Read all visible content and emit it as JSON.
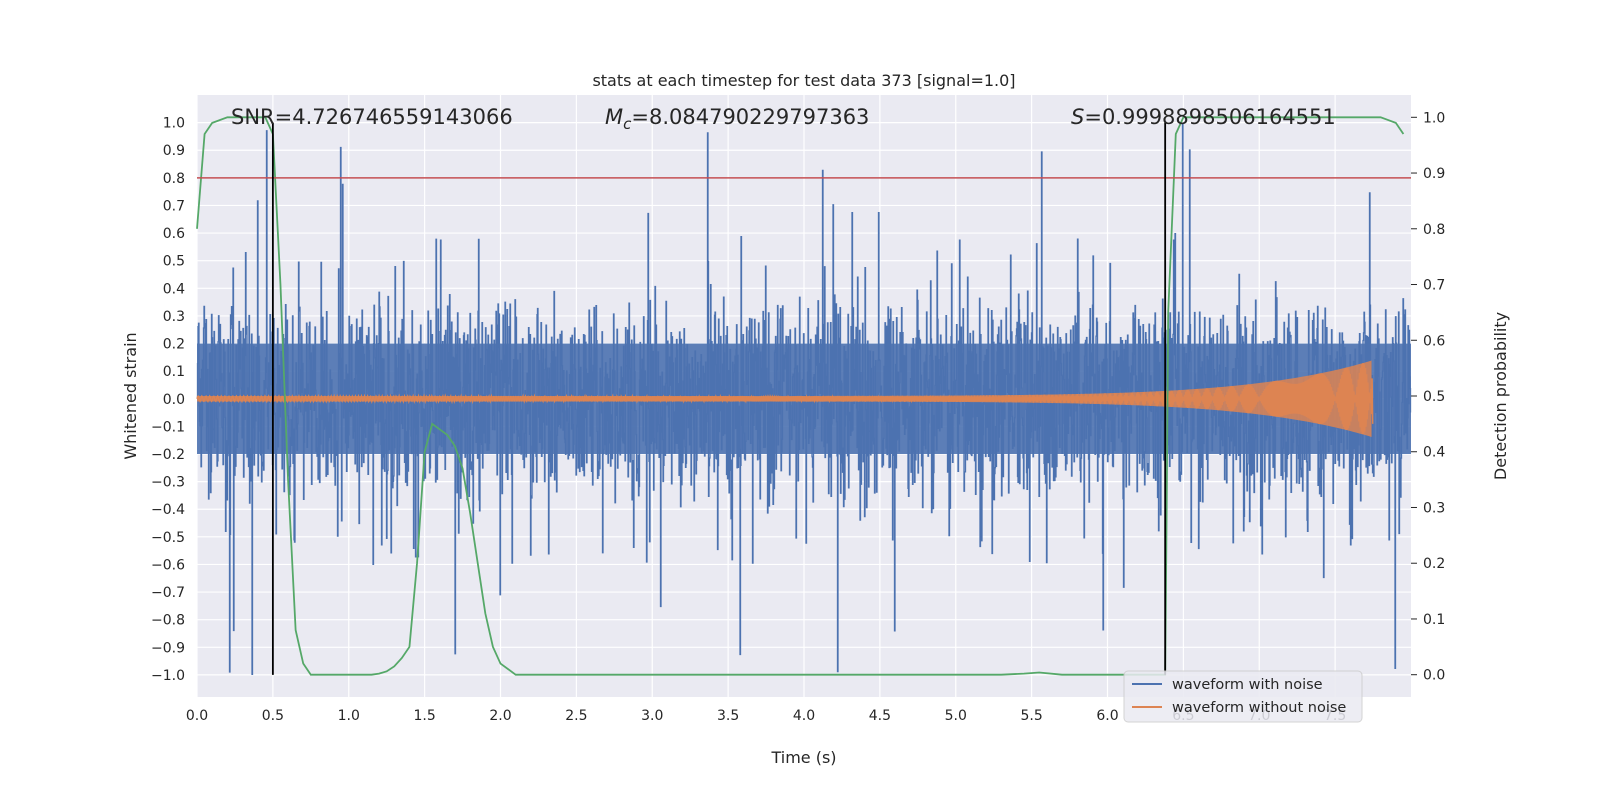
{
  "chart_data": {
    "type": "line",
    "title": "stats at each timestep for test data 373 [signal=1.0]",
    "xlabel": "Time (s)",
    "ylabel_left": "Whitened strain",
    "ylabel_right": "Detection probability",
    "xlim": [
      0.0,
      8.0
    ],
    "ylim_left": [
      -1.08,
      1.1
    ],
    "ylim_right": [
      -0.04,
      1.04
    ],
    "xticks": [
      "0.0",
      "0.5",
      "1.0",
      "1.5",
      "2.0",
      "2.5",
      "3.0",
      "3.5",
      "4.0",
      "4.5",
      "5.0",
      "5.5",
      "6.0",
      "6.5",
      "7.0",
      "7.5"
    ],
    "xtick_values": [
      0.0,
      0.5,
      1.0,
      1.5,
      2.0,
      2.5,
      3.0,
      3.5,
      4.0,
      4.5,
      5.0,
      5.5,
      6.0,
      6.5,
      7.0,
      7.5
    ],
    "yticks_left": [
      "−1.0",
      "−0.9",
      "−0.8",
      "−0.7",
      "−0.6",
      "−0.5",
      "−0.4",
      "−0.3",
      "−0.2",
      "−0.1",
      "0.0",
      "0.1",
      "0.2",
      "0.3",
      "0.4",
      "0.5",
      "0.6",
      "0.7",
      "0.8",
      "0.9",
      "1.0"
    ],
    "ytick_values_left": [
      -1.0,
      -0.9,
      -0.8,
      -0.7,
      -0.6,
      -0.5,
      -0.4,
      -0.3,
      -0.2,
      -0.1,
      0.0,
      0.1,
      0.2,
      0.3,
      0.4,
      0.5,
      0.6,
      0.7,
      0.8,
      0.9,
      1.0
    ],
    "yticks_right": [
      "0.0",
      "0.1",
      "0.2",
      "0.3",
      "0.4",
      "0.5",
      "0.6",
      "0.7",
      "0.8",
      "0.9",
      "1.0"
    ],
    "ytick_values_right": [
      0.0,
      0.1,
      0.2,
      0.3,
      0.4,
      0.5,
      0.6,
      0.7,
      0.8,
      0.9,
      1.0
    ],
    "annotations": {
      "snr": "SNR=4.726746559143066",
      "mc_symbol": "M",
      "mc_sub": "c",
      "mc_value": "=8.084790229797363",
      "s_symbol": "S",
      "s_value": "=0.9998898506164551"
    },
    "legend": {
      "placement": "bottom-right",
      "entries": [
        "waveform with noise",
        "waveform without noise"
      ]
    },
    "colors": {
      "noise": "#4c72b0",
      "clean": "#dd8452",
      "probability": "#55a868",
      "threshold": "#c44e52",
      "markers": "#000000",
      "background": "#eaeaf2",
      "grid": "#ffffff"
    },
    "threshold": 0.8,
    "vertical_markers": [
      0.5,
      6.38
    ],
    "marker_range": [
      -1.0,
      1.0
    ],
    "series": [
      {
        "name": "waveform with noise",
        "axis": "left",
        "description": "noisy whitened strain, dense band roughly ±0.4 with spikes to about ±1.0",
        "envelope_typical": 0.4,
        "envelope_peak": 1.0
      },
      {
        "name": "waveform without noise",
        "axis": "left",
        "description": "chirp signal growing in amplitude until merger",
        "chirp_start_amplitude": 0.01,
        "chirp_peak_amplitude": 0.14,
        "merger_time": 7.75
      },
      {
        "name": "detection probability",
        "axis": "right",
        "x": [
          0.0,
          0.05,
          0.1,
          0.2,
          0.3,
          0.4,
          0.45,
          0.5,
          0.55,
          0.6,
          0.65,
          0.7,
          0.75,
          0.8,
          0.9,
          1.0,
          1.1,
          1.15,
          1.2,
          1.25,
          1.3,
          1.35,
          1.4,
          1.45,
          1.5,
          1.55,
          1.6,
          1.65,
          1.7,
          1.75,
          1.8,
          1.85,
          1.9,
          1.95,
          2.0,
          2.05,
          2.1,
          2.5,
          3.0,
          3.5,
          4.0,
          4.5,
          5.0,
          5.3,
          5.45,
          5.55,
          5.7,
          6.0,
          6.2,
          6.38,
          6.39,
          6.4,
          6.45,
          6.5,
          6.6,
          7.0,
          7.5,
          7.7,
          7.8,
          7.85,
          7.9,
          7.95
        ],
        "y": [
          0.8,
          0.97,
          0.99,
          1.0,
          1.0,
          1.0,
          1.0,
          0.97,
          0.7,
          0.35,
          0.08,
          0.02,
          0.0,
          0.0,
          0.0,
          0.0,
          0.0,
          0.0,
          0.002,
          0.006,
          0.015,
          0.03,
          0.05,
          0.2,
          0.4,
          0.45,
          0.44,
          0.43,
          0.41,
          0.37,
          0.29,
          0.2,
          0.11,
          0.05,
          0.02,
          0.01,
          0.0,
          0.0,
          0.0,
          0.0,
          0.0,
          0.0,
          0.0,
          0.0,
          0.002,
          0.004,
          0.0,
          0.0,
          0.0,
          0.0,
          0.3,
          0.65,
          0.97,
          1.0,
          1.0,
          1.0,
          1.0,
          1.0,
          1.0,
          0.995,
          0.99,
          0.97
        ]
      }
    ]
  }
}
